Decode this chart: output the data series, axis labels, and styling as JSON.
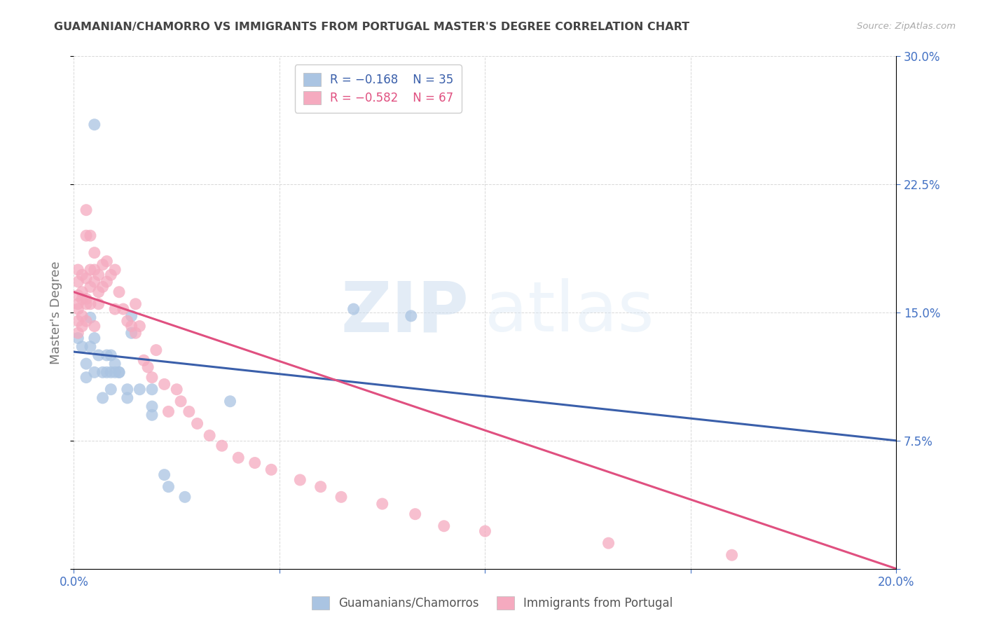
{
  "title": "GUAMANIAN/CHAMORRO VS IMMIGRANTS FROM PORTUGAL MASTER'S DEGREE CORRELATION CHART",
  "source": "Source: ZipAtlas.com",
  "ylabel": "Master's Degree",
  "xlim": [
    0.0,
    0.2
  ],
  "ylim": [
    0.0,
    0.3
  ],
  "legend_R_blue": "R = −0.168",
  "legend_N_blue": "N = 35",
  "legend_R_pink": "R = −0.582",
  "legend_N_pink": "N = 67",
  "legend_label_blue": "Guamanians/Chamorros",
  "legend_label_pink": "Immigrants from Portugal",
  "color_blue": "#aac4e2",
  "color_pink": "#f5aabf",
  "line_color_blue": "#3a5faa",
  "line_color_pink": "#e05080",
  "watermark_zip": "ZIP",
  "watermark_atlas": "atlas",
  "blue_scatter": [
    [
      0.001,
      0.135
    ],
    [
      0.002,
      0.13
    ],
    [
      0.003,
      0.12
    ],
    [
      0.003,
      0.112
    ],
    [
      0.004,
      0.147
    ],
    [
      0.004,
      0.13
    ],
    [
      0.005,
      0.26
    ],
    [
      0.005,
      0.135
    ],
    [
      0.005,
      0.115
    ],
    [
      0.006,
      0.125
    ],
    [
      0.007,
      0.115
    ],
    [
      0.007,
      0.1
    ],
    [
      0.008,
      0.125
    ],
    [
      0.008,
      0.115
    ],
    [
      0.009,
      0.115
    ],
    [
      0.009,
      0.125
    ],
    [
      0.009,
      0.105
    ],
    [
      0.01,
      0.115
    ],
    [
      0.01,
      0.12
    ],
    [
      0.011,
      0.115
    ],
    [
      0.011,
      0.115
    ],
    [
      0.013,
      0.105
    ],
    [
      0.013,
      0.1
    ],
    [
      0.014,
      0.148
    ],
    [
      0.014,
      0.138
    ],
    [
      0.016,
      0.105
    ],
    [
      0.019,
      0.095
    ],
    [
      0.019,
      0.105
    ],
    [
      0.019,
      0.09
    ],
    [
      0.022,
      0.055
    ],
    [
      0.023,
      0.048
    ],
    [
      0.027,
      0.042
    ],
    [
      0.038,
      0.098
    ],
    [
      0.068,
      0.152
    ],
    [
      0.082,
      0.148
    ]
  ],
  "pink_scatter": [
    [
      0.001,
      0.175
    ],
    [
      0.001,
      0.168
    ],
    [
      0.001,
      0.16
    ],
    [
      0.001,
      0.152
    ],
    [
      0.001,
      0.145
    ],
    [
      0.001,
      0.138
    ],
    [
      0.001,
      0.155
    ],
    [
      0.002,
      0.172
    ],
    [
      0.002,
      0.162
    ],
    [
      0.002,
      0.158
    ],
    [
      0.002,
      0.148
    ],
    [
      0.002,
      0.142
    ],
    [
      0.003,
      0.21
    ],
    [
      0.003,
      0.195
    ],
    [
      0.003,
      0.17
    ],
    [
      0.003,
      0.158
    ],
    [
      0.003,
      0.145
    ],
    [
      0.003,
      0.155
    ],
    [
      0.004,
      0.195
    ],
    [
      0.004,
      0.175
    ],
    [
      0.004,
      0.165
    ],
    [
      0.004,
      0.155
    ],
    [
      0.005,
      0.185
    ],
    [
      0.005,
      0.175
    ],
    [
      0.005,
      0.168
    ],
    [
      0.005,
      0.142
    ],
    [
      0.006,
      0.172
    ],
    [
      0.006,
      0.162
    ],
    [
      0.006,
      0.155
    ],
    [
      0.007,
      0.178
    ],
    [
      0.007,
      0.165
    ],
    [
      0.008,
      0.18
    ],
    [
      0.008,
      0.168
    ],
    [
      0.009,
      0.172
    ],
    [
      0.01,
      0.175
    ],
    [
      0.01,
      0.152
    ],
    [
      0.011,
      0.162
    ],
    [
      0.012,
      0.152
    ],
    [
      0.013,
      0.145
    ],
    [
      0.014,
      0.142
    ],
    [
      0.015,
      0.155
    ],
    [
      0.015,
      0.138
    ],
    [
      0.016,
      0.142
    ],
    [
      0.017,
      0.122
    ],
    [
      0.018,
      0.118
    ],
    [
      0.019,
      0.112
    ],
    [
      0.02,
      0.128
    ],
    [
      0.022,
      0.108
    ],
    [
      0.023,
      0.092
    ],
    [
      0.025,
      0.105
    ],
    [
      0.026,
      0.098
    ],
    [
      0.028,
      0.092
    ],
    [
      0.03,
      0.085
    ],
    [
      0.033,
      0.078
    ],
    [
      0.036,
      0.072
    ],
    [
      0.04,
      0.065
    ],
    [
      0.044,
      0.062
    ],
    [
      0.048,
      0.058
    ],
    [
      0.055,
      0.052
    ],
    [
      0.06,
      0.048
    ],
    [
      0.065,
      0.042
    ],
    [
      0.075,
      0.038
    ],
    [
      0.083,
      0.032
    ],
    [
      0.09,
      0.025
    ],
    [
      0.1,
      0.022
    ],
    [
      0.13,
      0.015
    ],
    [
      0.16,
      0.008
    ]
  ],
  "blue_line_x": [
    0.0,
    0.2
  ],
  "blue_line_y": [
    0.127,
    0.075
  ],
  "pink_line_x": [
    0.0,
    0.2
  ],
  "pink_line_y": [
    0.162,
    0.0
  ],
  "background_color": "#ffffff",
  "grid_color": "#d8d8d8",
  "title_color": "#444444",
  "axis_tick_color": "#4472c4",
  "ylabel_color": "#777777"
}
